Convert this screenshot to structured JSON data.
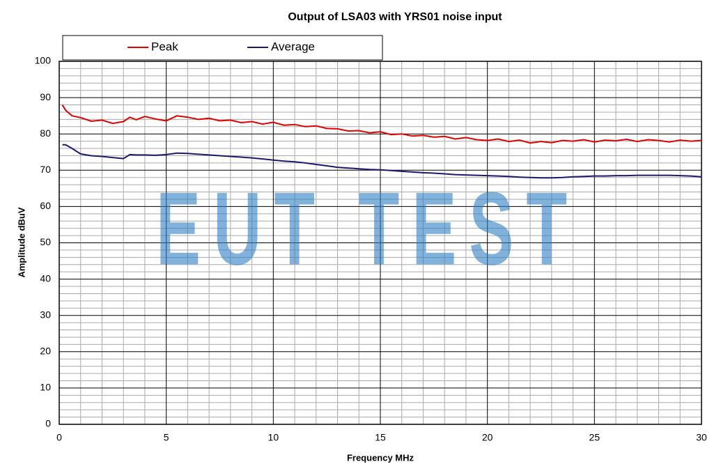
{
  "chart_data": {
    "type": "line",
    "title": "Output of LSA03 with YRS01 noise input",
    "xlabel": "Frequency MHz",
    "ylabel": "Amplitude dBuV",
    "watermark": "EUT TEST",
    "x": [
      0.15,
      0.3,
      0.6,
      1,
      1.5,
      2,
      2.5,
      3,
      3.3,
      3.6,
      4,
      4.5,
      5,
      5.5,
      6,
      6.5,
      7,
      7.5,
      8,
      8.5,
      9,
      9.5,
      10,
      10.5,
      11,
      11.5,
      12,
      12.5,
      13,
      13.5,
      14,
      14.5,
      15,
      15.5,
      16,
      16.5,
      17,
      17.5,
      18,
      18.5,
      19,
      19.5,
      20,
      20.5,
      21,
      21.5,
      22,
      22.5,
      23,
      23.5,
      24,
      24.5,
      25,
      25.5,
      26,
      26.5,
      27,
      27.5,
      28,
      28.5,
      29,
      29.5,
      30
    ],
    "series": [
      {
        "name": "Peak",
        "color": "#e00000",
        "values": [
          88,
          86.5,
          85,
          84.5,
          83.5,
          83.8,
          82.9,
          83.4,
          84.6,
          83.9,
          84.8,
          84.1,
          83.6,
          85,
          84.6,
          84,
          84.3,
          83.6,
          83.8,
          83.1,
          83.4,
          82.7,
          83.2,
          82.4,
          82.6,
          82,
          82.2,
          81.5,
          81.4,
          80.8,
          80.9,
          80.3,
          80.6,
          79.8,
          80,
          79.4,
          79.6,
          79.1,
          79.3,
          78.6,
          79,
          78.4,
          78.2,
          78.6,
          77.9,
          78.3,
          77.5,
          77.9,
          77.6,
          78.2,
          78,
          78.4,
          77.8,
          78.3,
          78.1,
          78.5,
          77.9,
          78.4,
          78.2,
          77.8,
          78.3,
          78,
          78.2
        ]
      },
      {
        "name": "Average",
        "color": "#1a1a6e",
        "values": [
          77,
          77,
          76,
          74.5,
          74,
          73.8,
          73.5,
          73.2,
          74.3,
          74.2,
          74.2,
          74.1,
          74.3,
          74.7,
          74.6,
          74.4,
          74.2,
          74,
          73.8,
          73.6,
          73.4,
          73.1,
          72.8,
          72.5,
          72.3,
          72,
          71.6,
          71.2,
          70.8,
          70.6,
          70.4,
          70.2,
          70.1,
          69.9,
          69.7,
          69.5,
          69.3,
          69.2,
          69,
          68.8,
          68.7,
          68.6,
          68.5,
          68.4,
          68.3,
          68.1,
          68,
          67.9,
          67.9,
          68,
          68.2,
          68.3,
          68.4,
          68.4,
          68.5,
          68.5,
          68.6,
          68.6,
          68.6,
          68.6,
          68.5,
          68.4,
          68.2
        ]
      }
    ],
    "xlim": [
      0,
      30
    ],
    "xticks": [
      0,
      5,
      10,
      15,
      20,
      25,
      30
    ],
    "ylim": [
      0,
      100
    ],
    "yticks": [
      0,
      10,
      20,
      30,
      40,
      50,
      60,
      70,
      80,
      90,
      100
    ],
    "grid": true,
    "legend": "top"
  }
}
